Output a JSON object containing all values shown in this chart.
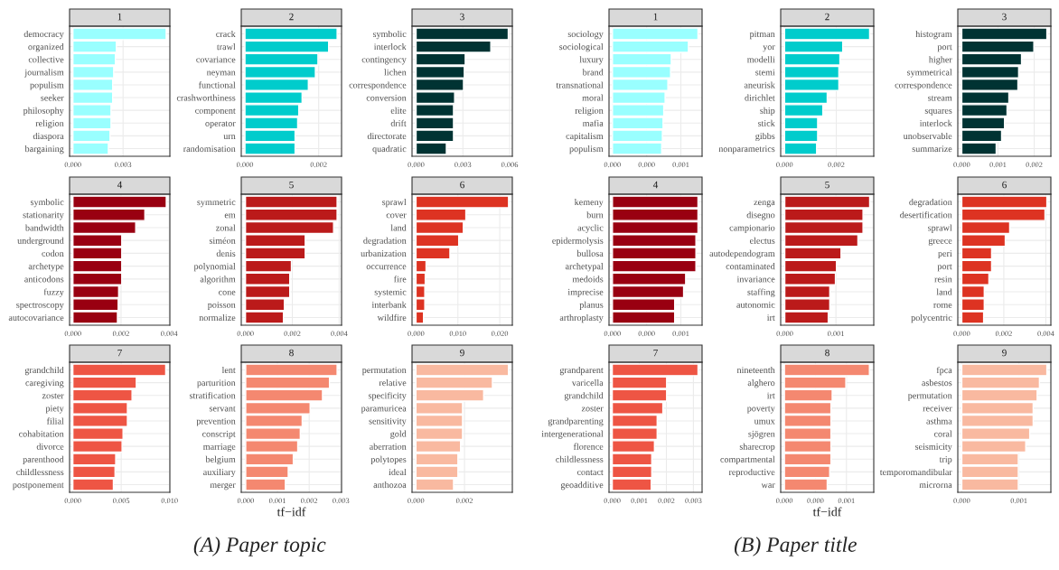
{
  "chart_data": [
    {
      "type": "bar",
      "orientation": "horizontal",
      "title": "1",
      "color": "#99ffff",
      "grid": true,
      "categories": [
        "democracy",
        "organized",
        "collective",
        "journalism",
        "populism",
        "seeker",
        "philosophy",
        "religion",
        "diaspora",
        "bargaining"
      ],
      "values": [
        0.00558,
        0.0026,
        0.00254,
        0.00244,
        0.00238,
        0.00238,
        0.00228,
        0.00228,
        0.00222,
        0.00212
      ],
      "xlim": [
        -0.0002,
        0.0058
      ],
      "xticks": [
        {
          "value": 0,
          "label": "0.000"
        },
        0.003
      ]
    },
    {
      "type": "bar",
      "orientation": "horizontal",
      "title": "2",
      "color": "#00cccc",
      "grid": true,
      "categories": [
        "crack",
        "trawl",
        "covariance",
        "neyman",
        "functional",
        "crashworthiness",
        "component",
        "operator",
        "urn",
        "randomisation"
      ],
      "values": [
        0.0025,
        0.00227,
        0.00198,
        0.00191,
        0.00172,
        0.00155,
        0.00146,
        0.00143,
        0.00136,
        0.00136
      ],
      "xlim": [
        -0.0001,
        0.00262
      ],
      "xticks": [
        {
          "value": 0,
          "label": "0.000"
        },
        0.002
      ]
    },
    {
      "type": "bar",
      "orientation": "horizontal",
      "title": "3",
      "color": "#003333",
      "grid": true,
      "categories": [
        "symbolic",
        "interlock",
        "contingency",
        "lichen",
        "correspondence",
        "conversion",
        "elite",
        "drift",
        "directorate",
        "quadratic"
      ],
      "values": [
        0.00591,
        0.00479,
        0.00315,
        0.00309,
        0.00304,
        0.00247,
        0.0024,
        0.0024,
        0.0024,
        0.00194
      ],
      "xlim": [
        -0.00026,
        0.00617
      ],
      "xticks": [
        {
          "value": 0,
          "label": "0.000"
        },
        0.003,
        0.006
      ]
    },
    {
      "type": "bar",
      "orientation": "horizontal",
      "title": "4",
      "color": "#990011",
      "grid": true,
      "categories": [
        "symbolic",
        "stationarity",
        "bandwidth",
        "underground",
        "codon",
        "archetype",
        "anticodons",
        "fuzzy",
        "spectroscopy",
        "autocovariance"
      ],
      "values": [
        0.00388,
        0.00299,
        0.00261,
        0.00203,
        0.00203,
        0.00203,
        0.00203,
        0.0019,
        0.00188,
        0.00185
      ],
      "xlim": [
        -0.00014,
        0.00403
      ],
      "xticks": [
        {
          "value": 0,
          "label": "0.000"
        },
        0.002,
        0.004
      ]
    },
    {
      "type": "bar",
      "orientation": "horizontal",
      "title": "5",
      "color": "#bb1a1a",
      "grid": true,
      "categories": [
        "symmetric",
        "em",
        "zonal",
        "siméon",
        "denis",
        "polynomial",
        "algorithm",
        "cone",
        "poisson",
        "normalize"
      ],
      "values": [
        0.00391,
        0.00391,
        0.00376,
        0.00255,
        0.00255,
        0.00196,
        0.00189,
        0.00189,
        0.00166,
        0.00162
      ],
      "xlim": [
        -0.00018,
        0.0041
      ],
      "xticks": [
        {
          "value": 0,
          "label": "0.000"
        },
        0.002,
        0.004
      ]
    },
    {
      "type": "bar",
      "orientation": "horizontal",
      "title": "6",
      "color": "#dd3322",
      "grid": true,
      "categories": [
        "sprawl",
        "cover",
        "land",
        "degradation",
        "urbanization",
        "occurrence",
        "fire",
        "systemic",
        "interbank",
        "wildfire"
      ],
      "values": [
        0.0221,
        0.0119,
        0.0113,
        0.0102,
        0.0081,
        0.0024,
        0.0022,
        0.0021,
        0.0021,
        0.0018
      ],
      "xlim": [
        -0.00095,
        0.023
      ],
      "xticks": [
        {
          "value": 0,
          "label": "0.000"
        },
        {
          "value": 0.01,
          "label": "0.010"
        },
        {
          "value": 0.02,
          "label": "0.020"
        }
      ]
    },
    {
      "type": "bar",
      "orientation": "horizontal",
      "title": "7",
      "color": "#ee5544",
      "grid": true,
      "categories": [
        "grandchild",
        "caregiving",
        "zoster",
        "piety",
        "filial",
        "cohabitation",
        "divorce",
        "parenthood",
        "childlessness",
        "postponement"
      ],
      "values": [
        0.0096,
        0.00656,
        0.00612,
        0.00564,
        0.00564,
        0.00519,
        0.00509,
        0.00443,
        0.00436,
        0.00419
      ],
      "xlim": [
        -0.00034,
        0.01003
      ],
      "xticks": [
        {
          "value": 0,
          "label": "0.000"
        },
        0.005,
        {
          "value": 0.01,
          "label": "0.010"
        }
      ]
    },
    {
      "type": "bar",
      "orientation": "horizontal",
      "title": "8",
      "color": "#f48870",
      "grid": true,
      "xlabel": "tf−idf",
      "annotations": [
        "(A) Paper topic"
      ],
      "categories": [
        "lent",
        "parturition",
        "stratification",
        "servant",
        "prevention",
        "conscript",
        "marriage",
        "belgium",
        "auxiliary",
        "merger"
      ],
      "values": [
        0.00288,
        0.00264,
        0.00242,
        0.00203,
        0.00178,
        0.00172,
        0.00164,
        0.0015,
        0.00134,
        0.00125
      ],
      "xlim": [
        -0.00014,
        0.00302
      ],
      "xticks": [
        {
          "value": 0,
          "label": "0.000"
        },
        0.001,
        0.002,
        0.003
      ]
    },
    {
      "type": "bar",
      "orientation": "horizontal",
      "title": "9",
      "color": "#f9b9a0",
      "grid": true,
      "categories": [
        "permutation",
        "relative",
        "specificity",
        "paramuricea",
        "sensitivity",
        "gold",
        "aberration",
        "polytopes",
        "ideal",
        "anthozoa"
      ],
      "values": [
        0.00381,
        0.00315,
        0.00279,
        0.00192,
        0.00192,
        0.00192,
        0.00184,
        0.00173,
        0.00173,
        0.00155
      ],
      "xlim": [
        -0.00016,
        0.00397
      ],
      "xticks": [
        {
          "value": 0,
          "label": "0.000"
        },
        0.002
      ]
    },
    {
      "type": "bar",
      "orientation": "horizontal",
      "title": "1",
      "color": "#99ffff",
      "grid": true,
      "categories": [
        "sociology",
        "sociological",
        "luxury",
        "brand",
        "transnational",
        "moral",
        "religion",
        "mafia",
        "capitalism",
        "populism"
      ],
      "values": [
        0.00125,
        0.00111,
        0.00086,
        0.00085,
        0.00081,
        0.00077,
        0.00075,
        0.00074,
        0.00073,
        0.00072
      ],
      "xlim": [
        -5e-05,
        0.00131
      ],
      "xticks": [
        {
          "value": 0,
          "label": "0.000"
        },
        {
          "value": 0.0005,
          "label": "0.000"
        },
        0.001
      ]
    },
    {
      "type": "bar",
      "orientation": "horizontal",
      "title": "2",
      "color": "#00cccc",
      "grid": true,
      "categories": [
        "pitman",
        "yor",
        "modelli",
        "stemi",
        "aneurisk",
        "dirichlet",
        "ship",
        "stick",
        "gibbs",
        "nonparametrics"
      ],
      "values": [
        0.00329,
        0.00225,
        0.00214,
        0.0021,
        0.0021,
        0.00165,
        0.00148,
        0.00128,
        0.00128,
        0.00124
      ],
      "xlim": [
        -0.00015,
        0.00345
      ],
      "xticks": [
        {
          "value": 0,
          "label": "0.000"
        },
        0.002
      ]
    },
    {
      "type": "bar",
      "orientation": "horizontal",
      "title": "3",
      "color": "#003333",
      "grid": true,
      "categories": [
        "histogram",
        "port",
        "higher",
        "symmetrical",
        "correspondence",
        "stream",
        "squares",
        "interlock",
        "unobservable",
        "summarize"
      ],
      "values": [
        0.00235,
        0.00199,
        0.00165,
        0.00157,
        0.00155,
        0.0013,
        0.00125,
        0.00118,
        0.0011,
        0.00095
      ],
      "xlim": [
        -0.00011,
        0.00246
      ],
      "xticks": [
        {
          "value": 0,
          "label": "0.000"
        },
        0.001,
        0.002
      ]
    },
    {
      "type": "bar",
      "orientation": "horizontal",
      "title": "4",
      "color": "#990011",
      "grid": true,
      "categories": [
        "kemeny",
        "burn",
        "acyclic",
        "epidermolysis",
        "bullosa",
        "archetypal",
        "medoids",
        "imprecise",
        "planus",
        "arthroplasty"
      ],
      "values": [
        0.00125,
        0.00125,
        0.00125,
        0.00122,
        0.00122,
        0.00122,
        0.00107,
        0.00104,
        0.00091,
        0.00091
      ],
      "xlim": [
        -5e-05,
        0.00131
      ],
      "xticks": [
        {
          "value": 0,
          "label": "0.000"
        },
        {
          "value": 0.0005,
          "label": "0.000"
        },
        0.001
      ]
    },
    {
      "type": "bar",
      "orientation": "horizontal",
      "title": "5",
      "color": "#bb1a1a",
      "grid": true,
      "categories": [
        "zenga",
        "disegno",
        "campionario",
        "electus",
        "autodependogram",
        "contaminated",
        "invariance",
        "staffing",
        "autonomic",
        "irt"
      ],
      "values": [
        0.00166,
        0.00153,
        0.00153,
        0.00143,
        0.0011,
        0.00101,
        0.00099,
        0.00088,
        0.00088,
        0.00085
      ],
      "xlim": [
        -8e-05,
        0.00174
      ],
      "xticks": [
        {
          "value": 0,
          "label": "0.000"
        },
        0.001
      ]
    },
    {
      "type": "bar",
      "orientation": "horizontal",
      "title": "6",
      "color": "#dd3322",
      "grid": true,
      "categories": [
        "degradation",
        "desertification",
        "sprawl",
        "greece",
        "peri",
        "port",
        "resin",
        "land",
        "rome",
        "polycentric"
      ],
      "values": [
        0.00405,
        0.00396,
        0.00228,
        0.00207,
        0.00142,
        0.00142,
        0.00129,
        0.00107,
        0.00107,
        0.00104
      ],
      "xlim": [
        -0.00019,
        0.00424
      ],
      "xticks": [
        {
          "value": 0,
          "label": "0.000"
        },
        0.002,
        0.004
      ]
    },
    {
      "type": "bar",
      "orientation": "horizontal",
      "title": "7",
      "color": "#ee5544",
      "grid": true,
      "categories": [
        "grandparent",
        "varicella",
        "grandchild",
        "zoster",
        "grandparenting",
        "intergenerational",
        "florence",
        "childlessness",
        "contact",
        "geoadditive"
      ],
      "values": [
        0.00317,
        0.00201,
        0.00201,
        0.00187,
        0.00166,
        0.00166,
        0.00156,
        0.00146,
        0.00146,
        0.00144
      ],
      "xlim": [
        -0.00012,
        0.00332
      ],
      "xticks": [
        {
          "value": 0,
          "label": "0.000"
        },
        0.001,
        0.002,
        0.003
      ]
    },
    {
      "type": "bar",
      "orientation": "horizontal",
      "title": "8",
      "color": "#f48870",
      "grid": true,
      "xlabel": "tf−idf",
      "annotations": [
        "(B) Paper title"
      ],
      "categories": [
        "nineteenth",
        "alghero",
        "irt",
        "poverty",
        "umux",
        "sjögren",
        "sharecrop",
        "compartmental",
        "reproductive",
        "war"
      ],
      "values": [
        0.00137,
        0.00099,
        0.00077,
        0.00075,
        0.00075,
        0.00075,
        0.00075,
        0.00075,
        0.00073,
        0.00069
      ],
      "xlim": [
        -6e-05,
        0.00144
      ],
      "xticks": [
        {
          "value": 0,
          "label": "0.000"
        },
        {
          "value": 0.0005,
          "label": "0.000"
        },
        0.001
      ]
    },
    {
      "type": "bar",
      "orientation": "horizontal",
      "title": "9",
      "color": "#f9b9a0",
      "grid": true,
      "categories": [
        "fpca",
        "asbestos",
        "permutation",
        "receiver",
        "asthma",
        "coral",
        "seismicity",
        "trip",
        "temporomandibular",
        "microrna"
      ],
      "values": [
        0.00149,
        0.00136,
        0.00132,
        0.00125,
        0.00125,
        0.00119,
        0.00112,
        0.00099,
        0.00099,
        0.00099
      ],
      "xlim": [
        -7e-05,
        0.00156
      ],
      "xticks": [
        {
          "value": 0,
          "label": "0.000"
        },
        0.001
      ]
    }
  ]
}
